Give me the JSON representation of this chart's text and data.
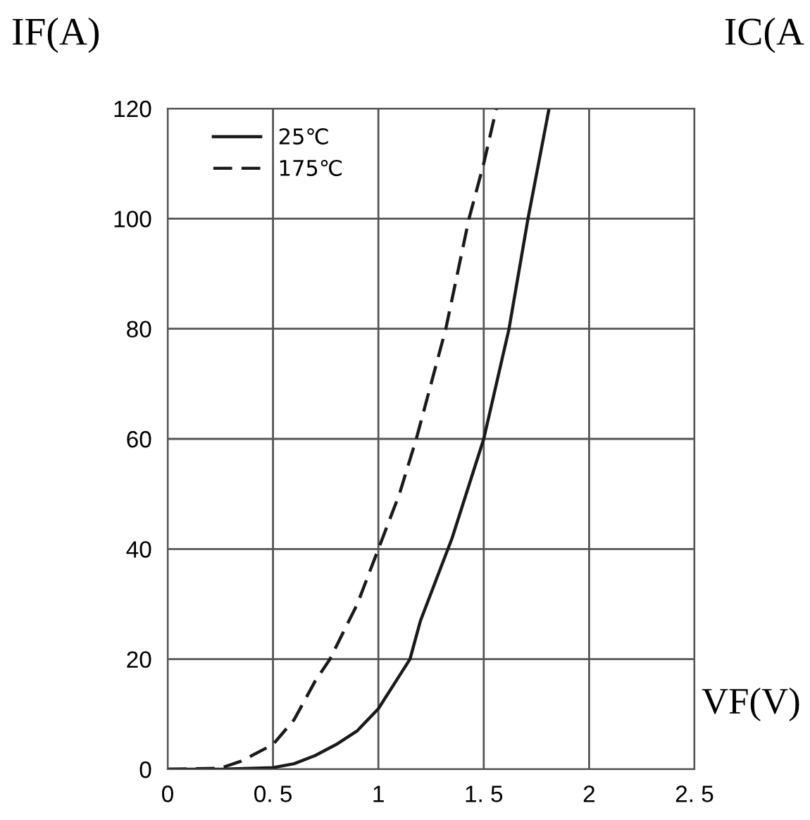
{
  "chart_data": {
    "type": "line",
    "xlabel": "VF(V)",
    "ylabel": "IF(A)",
    "annotations": [
      "IC(A"
    ],
    "xlim": [
      0,
      2.5
    ],
    "xticks": [
      0,
      {
        "value": 0.5,
        "label": "0. 5"
      },
      1,
      {
        "value": 1.5,
        "label": "1. 5"
      },
      2,
      {
        "value": 2.5,
        "label": "2. 5"
      }
    ],
    "ylim": [
      0,
      120
    ],
    "yticks": [
      0,
      20,
      40,
      60,
      80,
      100,
      120
    ],
    "grid": true,
    "legend": "top left",
    "marker": "none",
    "series": [
      {
        "name": "25℃",
        "color": "#1a1a1a",
        "line_style": "solid",
        "x": [
          0,
          0.25,
          0.5,
          0.6,
          0.7,
          0.8,
          0.9,
          1.0,
          1.1,
          1.15,
          1.2,
          1.3,
          1.35,
          1.4,
          1.5,
          1.62,
          1.71,
          1.81
        ],
        "values": [
          0,
          0,
          0.3,
          1,
          2.5,
          4.5,
          7,
          11,
          17,
          20,
          27,
          37,
          42,
          48,
          60,
          80,
          100,
          120
        ]
      },
      {
        "name": "175℃",
        "color": "#1a1a1a",
        "line_style": "dashed",
        "x": [
          0,
          0.25,
          0.35,
          0.5,
          0.6,
          0.7,
          0.77,
          0.9,
          1.0,
          1.1,
          1.18,
          1.32,
          1.43,
          1.5,
          1.56
        ],
        "values": [
          0,
          0.2,
          1.5,
          4.5,
          9,
          16,
          20,
          30,
          40,
          50,
          60,
          80,
          100,
          110,
          120
        ]
      }
    ]
  }
}
